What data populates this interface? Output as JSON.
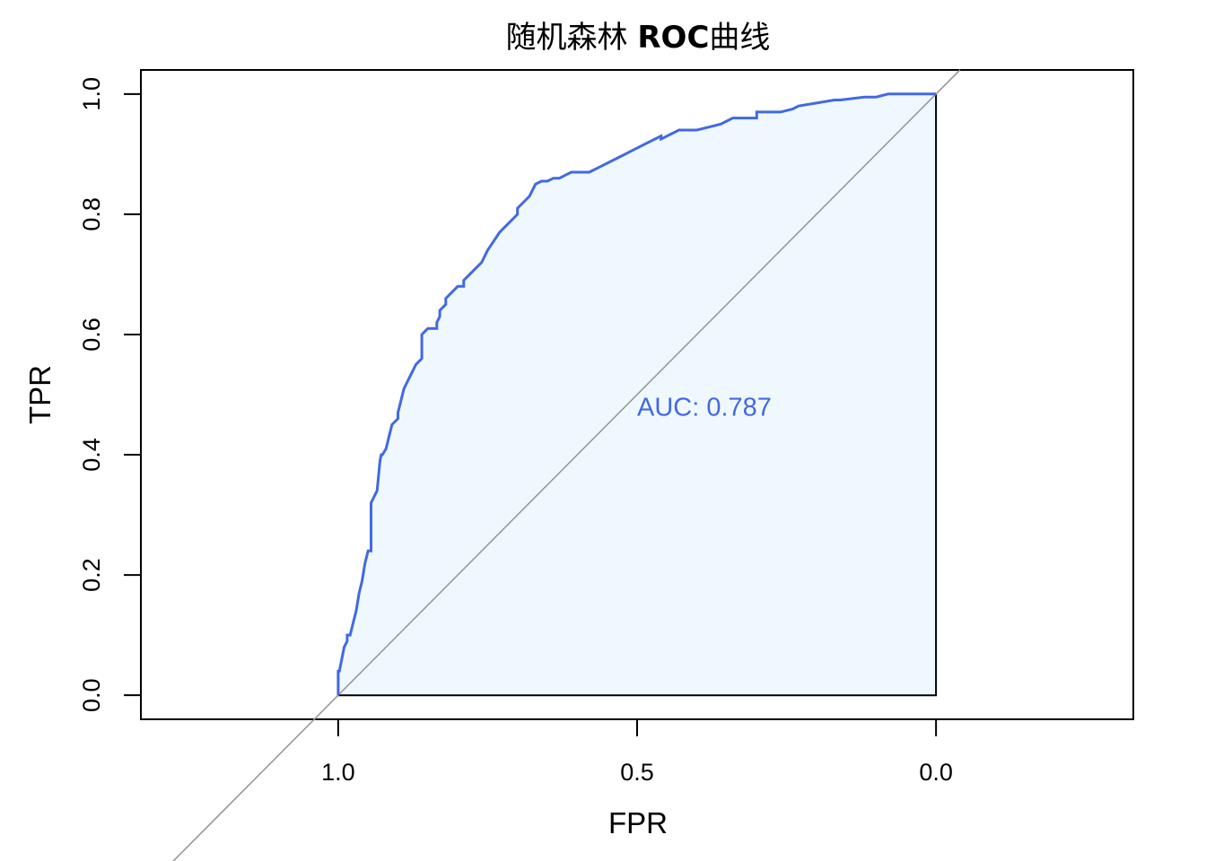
{
  "chart_data": {
    "type": "line",
    "title_part1": "随机森林 ",
    "title_part2": "ROC",
    "title_part3": "曲线",
    "xlabel": "FPR",
    "ylabel": "TPR",
    "x_reversed": true,
    "xlim": [
      1.33,
      -0.33
    ],
    "ylim": [
      -0.04,
      1.04
    ],
    "x_ticks": [
      {
        "value": 1.0,
        "label": "1.0"
      },
      {
        "value": 0.5,
        "label": "0.5"
      },
      {
        "value": 0.0,
        "label": "0.0"
      }
    ],
    "y_ticks": [
      {
        "value": 0.0,
        "label": "0.0"
      },
      {
        "value": 0.2,
        "label": "0.2"
      },
      {
        "value": 0.4,
        "label": "0.4"
      },
      {
        "value": 0.6,
        "label": "0.6"
      },
      {
        "value": 0.8,
        "label": "0.8"
      },
      {
        "value": 1.0,
        "label": "1.0"
      }
    ],
    "annotation": {
      "text": "AUC: 0.787",
      "x": 0.5,
      "y": 0.48
    },
    "colors": {
      "roc": "#4169E1",
      "fill": "#F0F8FF",
      "diagonal": "#999999",
      "annotation": "#4169E1"
    },
    "series": [
      {
        "x": [
          1.0,
          1.0,
          0.998,
          0.992,
          0.99,
          0.985,
          0.985,
          0.98,
          0.975,
          0.97,
          0.965,
          0.96,
          0.955,
          0.95,
          0.945,
          0.945,
          0.94,
          0.935,
          0.93,
          0.928,
          0.926,
          0.92,
          0.915,
          0.91,
          0.9,
          0.9,
          0.89,
          0.885,
          0.88,
          0.87,
          0.86,
          0.86,
          0.85,
          0.84,
          0.835,
          0.835,
          0.83,
          0.83,
          0.82,
          0.82,
          0.81,
          0.8,
          0.79,
          0.79,
          0.78,
          0.77,
          0.76,
          0.75,
          0.73,
          0.72,
          0.72,
          0.71,
          0.7,
          0.7,
          0.69,
          0.68,
          0.675,
          0.67,
          0.66,
          0.65,
          0.64,
          0.63,
          0.62,
          0.61,
          0.6,
          0.6,
          0.58,
          0.56,
          0.54,
          0.52,
          0.5,
          0.48,
          0.46,
          0.46,
          0.45,
          0.44,
          0.43,
          0.42,
          0.42,
          0.4,
          0.38,
          0.36,
          0.34,
          0.3,
          0.3,
          0.26,
          0.24,
          0.23,
          0.23,
          0.2,
          0.17,
          0.16,
          0.12,
          0.1,
          0.08,
          0.06,
          0.04,
          0.0
        ],
        "y": [
          0.0,
          0.04,
          0.04,
          0.07,
          0.08,
          0.09,
          0.1,
          0.1,
          0.12,
          0.14,
          0.17,
          0.19,
          0.22,
          0.24,
          0.24,
          0.32,
          0.33,
          0.34,
          0.39,
          0.4,
          0.4,
          0.41,
          0.43,
          0.45,
          0.46,
          0.47,
          0.51,
          0.52,
          0.53,
          0.55,
          0.56,
          0.6,
          0.61,
          0.61,
          0.61,
          0.62,
          0.63,
          0.64,
          0.65,
          0.66,
          0.67,
          0.68,
          0.68,
          0.69,
          0.7,
          0.71,
          0.72,
          0.74,
          0.77,
          0.78,
          0.78,
          0.79,
          0.8,
          0.81,
          0.82,
          0.83,
          0.84,
          0.85,
          0.855,
          0.855,
          0.86,
          0.86,
          0.865,
          0.87,
          0.87,
          0.87,
          0.87,
          0.88,
          0.89,
          0.9,
          0.91,
          0.92,
          0.93,
          0.925,
          0.93,
          0.935,
          0.94,
          0.94,
          0.94,
          0.94,
          0.945,
          0.95,
          0.96,
          0.96,
          0.97,
          0.97,
          0.975,
          0.98,
          0.98,
          0.985,
          0.99,
          0.99,
          0.995,
          0.995,
          1.0,
          1.0,
          1.0,
          1.0
        ]
      }
    ]
  }
}
